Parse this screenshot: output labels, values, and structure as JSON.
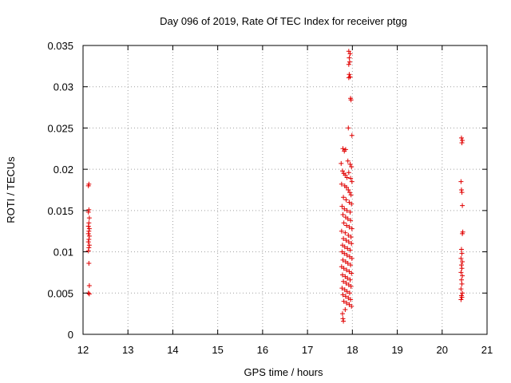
{
  "chart_data": {
    "type": "scatter",
    "title": "Day 096 of 2019, Rate Of TEC Index for receiver ptgg",
    "xlabel": "GPS time / hours",
    "ylabel": "ROTI / TECUs",
    "xlim": [
      12,
      21
    ],
    "ylim": [
      0,
      0.035
    ],
    "xticks": [
      12,
      13,
      14,
      15,
      16,
      17,
      18,
      19,
      20,
      21
    ],
    "xtick_labels": [
      "12",
      "13",
      "14",
      "15",
      "16",
      "17",
      "18",
      "19",
      "20",
      "21"
    ],
    "yticks": [
      0,
      0.005,
      0.01,
      0.015,
      0.02,
      0.025,
      0.03,
      0.035
    ],
    "ytick_labels": [
      "0",
      "0.005",
      "0.01",
      "0.015",
      "0.02",
      "0.025",
      "0.03",
      "0.035"
    ],
    "grid": true,
    "marker": "+",
    "color": "#e00000",
    "series": [
      {
        "name": "ROTI",
        "points": [
          [
            12.12,
            0.018
          ],
          [
            12.13,
            0.0182
          ],
          [
            12.13,
            0.0151
          ],
          [
            12.12,
            0.0148
          ],
          [
            12.14,
            0.0141
          ],
          [
            12.13,
            0.0135
          ],
          [
            12.12,
            0.0131
          ],
          [
            12.14,
            0.0128
          ],
          [
            12.13,
            0.0125
          ],
          [
            12.12,
            0.0122
          ],
          [
            12.14,
            0.0119
          ],
          [
            12.13,
            0.0115
          ],
          [
            12.12,
            0.0112
          ],
          [
            12.14,
            0.0108
          ],
          [
            12.13,
            0.0105
          ],
          [
            12.12,
            0.0101
          ],
          [
            12.13,
            0.0086
          ],
          [
            12.14,
            0.0059
          ],
          [
            12.12,
            0.005
          ],
          [
            12.14,
            0.0049
          ],
          [
            17.92,
            0.0343
          ],
          [
            17.95,
            0.034
          ],
          [
            17.93,
            0.0335
          ],
          [
            17.94,
            0.033
          ],
          [
            17.92,
            0.0327
          ],
          [
            17.93,
            0.0315
          ],
          [
            17.92,
            0.0311
          ],
          [
            17.95,
            0.0312
          ],
          [
            17.96,
            0.0286
          ],
          [
            17.97,
            0.0284
          ],
          [
            17.91,
            0.025
          ],
          [
            17.99,
            0.0241
          ],
          [
            17.79,
            0.0225
          ],
          [
            17.82,
            0.0222
          ],
          [
            17.85,
            0.0224
          ],
          [
            17.75,
            0.0207
          ],
          [
            17.9,
            0.021
          ],
          [
            17.95,
            0.0206
          ],
          [
            17.98,
            0.0203
          ],
          [
            17.78,
            0.0198
          ],
          [
            17.81,
            0.0195
          ],
          [
            17.84,
            0.0193
          ],
          [
            17.88,
            0.019
          ],
          [
            17.92,
            0.0196
          ],
          [
            17.96,
            0.0189
          ],
          [
            17.99,
            0.0185
          ],
          [
            17.76,
            0.0182
          ],
          [
            17.83,
            0.018
          ],
          [
            17.87,
            0.0178
          ],
          [
            17.91,
            0.0175
          ],
          [
            17.94,
            0.0172
          ],
          [
            17.97,
            0.0169
          ],
          [
            17.8,
            0.0166
          ],
          [
            17.86,
            0.0163
          ],
          [
            17.93,
            0.016
          ],
          [
            17.98,
            0.0158
          ],
          [
            17.77,
            0.0155
          ],
          [
            17.82,
            0.0152
          ],
          [
            17.88,
            0.015
          ],
          [
            17.95,
            0.0148
          ],
          [
            17.79,
            0.0145
          ],
          [
            17.85,
            0.0142
          ],
          [
            17.9,
            0.014
          ],
          [
            17.96,
            0.0138
          ],
          [
            17.81,
            0.0135
          ],
          [
            17.87,
            0.0132
          ],
          [
            17.93,
            0.013
          ],
          [
            17.99,
            0.0128
          ],
          [
            17.76,
            0.0125
          ],
          [
            17.84,
            0.0123
          ],
          [
            17.91,
            0.012
          ],
          [
            17.97,
            0.0118
          ],
          [
            17.8,
            0.0116
          ],
          [
            17.86,
            0.0114
          ],
          [
            17.92,
            0.0112
          ],
          [
            17.98,
            0.011
          ],
          [
            17.78,
            0.0108
          ],
          [
            17.83,
            0.0106
          ],
          [
            17.89,
            0.0104
          ],
          [
            17.95,
            0.0102
          ],
          [
            17.77,
            0.01
          ],
          [
            17.82,
            0.0098
          ],
          [
            17.88,
            0.0096
          ],
          [
            17.94,
            0.0094
          ],
          [
            17.99,
            0.0092
          ],
          [
            17.79,
            0.009
          ],
          [
            17.85,
            0.0088
          ],
          [
            17.9,
            0.0086
          ],
          [
            17.96,
            0.0084
          ],
          [
            17.76,
            0.0082
          ],
          [
            17.81,
            0.008
          ],
          [
            17.87,
            0.0078
          ],
          [
            17.93,
            0.0076
          ],
          [
            17.98,
            0.0074
          ],
          [
            17.78,
            0.0072
          ],
          [
            17.84,
            0.007
          ],
          [
            17.89,
            0.0068
          ],
          [
            17.95,
            0.0066
          ],
          [
            17.8,
            0.0064
          ],
          [
            17.86,
            0.0062
          ],
          [
            17.92,
            0.006
          ],
          [
            17.97,
            0.0058
          ],
          [
            17.77,
            0.0056
          ],
          [
            17.83,
            0.0054
          ],
          [
            17.88,
            0.0052
          ],
          [
            17.94,
            0.005
          ],
          [
            17.79,
            0.0048
          ],
          [
            17.85,
            0.0046
          ],
          [
            17.91,
            0.0044
          ],
          [
            17.96,
            0.0042
          ],
          [
            17.81,
            0.004
          ],
          [
            17.87,
            0.0038
          ],
          [
            17.93,
            0.0036
          ],
          [
            17.98,
            0.0034
          ],
          [
            17.84,
            0.003
          ],
          [
            17.78,
            0.0025
          ],
          [
            17.79,
            0.0019
          ],
          [
            17.8,
            0.0016
          ],
          [
            20.43,
            0.0238
          ],
          [
            20.45,
            0.0235
          ],
          [
            20.44,
            0.0232
          ],
          [
            20.42,
            0.0185
          ],
          [
            20.43,
            0.0175
          ],
          [
            20.44,
            0.0172
          ],
          [
            20.45,
            0.0156
          ],
          [
            20.46,
            0.0124
          ],
          [
            20.45,
            0.0122
          ],
          [
            20.43,
            0.0103
          ],
          [
            20.44,
            0.0098
          ],
          [
            20.42,
            0.0092
          ],
          [
            20.45,
            0.0088
          ],
          [
            20.43,
            0.0084
          ],
          [
            20.44,
            0.008
          ],
          [
            20.42,
            0.0075
          ],
          [
            20.45,
            0.0071
          ],
          [
            20.43,
            0.0066
          ],
          [
            20.44,
            0.0061
          ],
          [
            20.42,
            0.0055
          ],
          [
            20.45,
            0.005
          ],
          [
            20.43,
            0.0047
          ],
          [
            20.44,
            0.0045
          ],
          [
            20.42,
            0.0042
          ]
        ]
      }
    ]
  }
}
